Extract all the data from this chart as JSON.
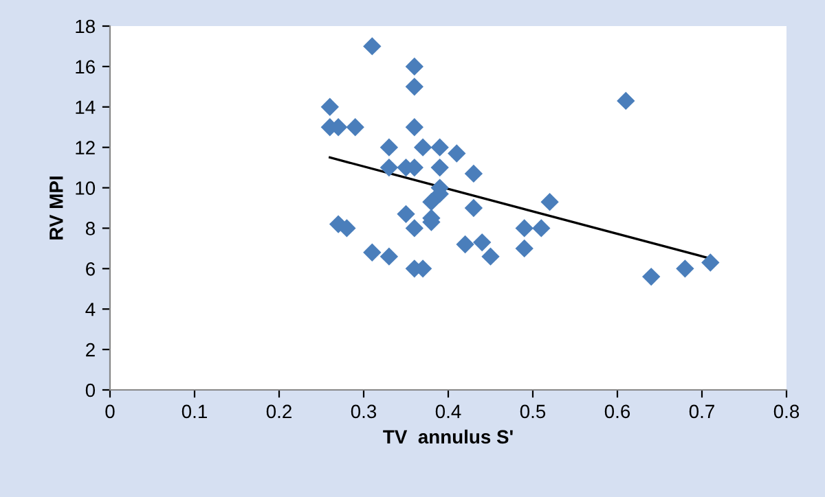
{
  "chart_data": {
    "type": "scatter",
    "xlabel": "TV  annulus S'",
    "ylabel": "RV MPI",
    "xlim": [
      0,
      0.8
    ],
    "ylim": [
      0,
      18
    ],
    "xticks": [
      0,
      0.1,
      0.2,
      0.3,
      0.4,
      0.5,
      0.6,
      0.7,
      0.8
    ],
    "yticks": [
      0,
      2,
      4,
      6,
      8,
      10,
      12,
      14,
      16,
      18
    ],
    "grid": false,
    "series": [
      {
        "color": "#4a7ebb",
        "marker": "diamond",
        "x": [
          0.26,
          0.26,
          0.27,
          0.29,
          0.31,
          0.36,
          0.36,
          0.36,
          0.33,
          0.37,
          0.39,
          0.41,
          0.33,
          0.35,
          0.36,
          0.39,
          0.43,
          0.39,
          0.39,
          0.38,
          0.52,
          0.43,
          0.35,
          0.38,
          0.38,
          0.27,
          0.28,
          0.36,
          0.49,
          0.51,
          0.42,
          0.44,
          0.49,
          0.31,
          0.33,
          0.45,
          0.36,
          0.37,
          0.61,
          0.64,
          0.68,
          0.71
        ],
        "values": [
          14,
          13,
          13,
          13,
          17,
          16,
          15,
          13,
          12,
          12,
          12,
          11.7,
          11,
          11,
          11,
          11,
          10.7,
          10,
          9.7,
          9.3,
          9.3,
          9,
          8.7,
          8.5,
          8.3,
          8.2,
          8,
          8,
          8,
          8,
          7.2,
          7.3,
          7,
          6.8,
          6.6,
          6.6,
          6,
          6,
          14.3,
          5.6,
          6,
          6.3
        ]
      },
      {
        "type": "line",
        "color": "#000000",
        "x": [
          0.26,
          0.71
        ],
        "values": [
          11.5,
          6.5
        ]
      }
    ]
  }
}
